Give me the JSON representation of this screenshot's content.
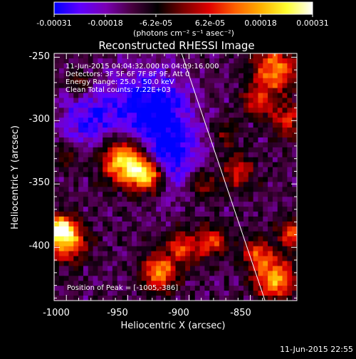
{
  "colorbar": {
    "tick_labels": [
      "-0.00031",
      "-0.00018",
      "-6.2e-05",
      "6.2e-05",
      "0.00018",
      "0.00031"
    ],
    "units_label": "(photons cm⁻² s⁻¹ asec⁻²)",
    "colors": [
      "#0000ff",
      "#5f00ff",
      "#7a00b4",
      "#480040",
      "#000000",
      "#7a0000",
      "#e00000",
      "#ff6000",
      "#ffb000",
      "#ffff30",
      "#ffffff"
    ]
  },
  "plot": {
    "title": "Reconstructed RHESSI Image",
    "xlabel": "Heliocentric X (arcsec)",
    "ylabel": "Heliocentric Y (arcsec)",
    "xlim": [
      -1010,
      -812
    ],
    "ylim": [
      -442,
      -247
    ],
    "x_ticks": [
      "-1000",
      "-950",
      "-900",
      "-850"
    ],
    "y_ticks": [
      "-250",
      "-300",
      "-350",
      "-400"
    ],
    "limb_line": [
      [
        -906,
        -247
      ],
      [
        -838,
        -442
      ]
    ],
    "info_lines": [
      "11-Jun-2015 04:04:32.000 to 04:09:16.000",
      "Detectors: 3F 5F 6F 7F 8F 9F, Att 0",
      "Energy Range: 25.0 - 50.0 keV",
      "Clean     Total counts: 7.22E+03"
    ],
    "peak_label": "Position of Peak = [-1005,-386]"
  },
  "timestamp": "11-Jun-2015 22:55"
}
